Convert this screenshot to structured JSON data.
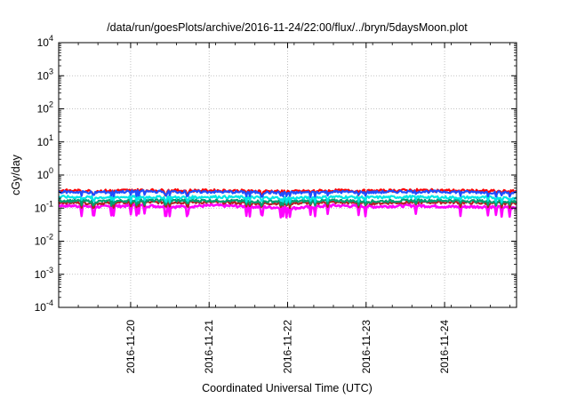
{
  "chart_data": {
    "type": "line",
    "title": "/data/run/goesPlots/archive/2016-11-24/22:00/flux/../bryn/5daysMoon.plot",
    "xlabel": "Coordinated Universal Time (UTC)",
    "ylabel": "cGy/day",
    "y_scale": "log",
    "ylim": [
      0.0001,
      10000
    ],
    "y_ticks": [
      {
        "value": 0.0001,
        "base": "10",
        "exp": "-4"
      },
      {
        "value": 0.001,
        "base": "10",
        "exp": "-3"
      },
      {
        "value": 0.01,
        "base": "10",
        "exp": "-2"
      },
      {
        "value": 0.1,
        "base": "10",
        "exp": "-1"
      },
      {
        "value": 1,
        "base": "10",
        "exp": "0"
      },
      {
        "value": 10,
        "base": "10",
        "exp": "1"
      },
      {
        "value": 100,
        "base": "10",
        "exp": "2"
      },
      {
        "value": 1000,
        "base": "10",
        "exp": "3"
      },
      {
        "value": 10000,
        "base": "10",
        "exp": "4"
      }
    ],
    "x_range": [
      "2016-11-19T02:00",
      "2016-11-24T22:00"
    ],
    "x_ticks": [
      "2016-11-20",
      "2016-11-21",
      "2016-11-22",
      "2016-11-23",
      "2016-11-24"
    ],
    "grid": true,
    "series": [
      {
        "color": "#ff00ff",
        "x": [
          "2016-11-19T02:00",
          "2016-11-19T14:00",
          "2016-11-20T02:00",
          "2016-11-20T14:00",
          "2016-11-21T02:00",
          "2016-11-21T14:00",
          "2016-11-22T02:00",
          "2016-11-22T14:00",
          "2016-11-23T02:00",
          "2016-11-23T14:00",
          "2016-11-24T02:00",
          "2016-11-24T14:00",
          "2016-11-24T22:00"
        ],
        "values": [
          0.12,
          0.11,
          0.12,
          0.11,
          0.12,
          0.11,
          0.1,
          0.12,
          0.11,
          0.12,
          0.11,
          0.11,
          0.1
        ]
      },
      {
        "color": "#b22222",
        "x": [
          "2016-11-19T02:00",
          "2016-11-19T14:00",
          "2016-11-20T02:00",
          "2016-11-20T14:00",
          "2016-11-21T02:00",
          "2016-11-21T14:00",
          "2016-11-22T02:00",
          "2016-11-22T14:00",
          "2016-11-23T02:00",
          "2016-11-23T14:00",
          "2016-11-24T02:00",
          "2016-11-24T14:00",
          "2016-11-24T22:00"
        ],
        "values": [
          0.15,
          0.14,
          0.15,
          0.15,
          0.15,
          0.14,
          0.14,
          0.15,
          0.14,
          0.15,
          0.15,
          0.14,
          0.14
        ]
      },
      {
        "color": "#009e73",
        "x": [
          "2016-11-19T02:00",
          "2016-11-19T14:00",
          "2016-11-20T02:00",
          "2016-11-20T14:00",
          "2016-11-21T02:00",
          "2016-11-21T14:00",
          "2016-11-22T02:00",
          "2016-11-22T14:00",
          "2016-11-23T02:00",
          "2016-11-23T14:00",
          "2016-11-24T02:00",
          "2016-11-24T14:00",
          "2016-11-24T22:00"
        ],
        "values": [
          0.17,
          0.16,
          0.17,
          0.17,
          0.17,
          0.16,
          0.16,
          0.17,
          0.16,
          0.17,
          0.17,
          0.16,
          0.16
        ]
      },
      {
        "color": "#00e5e5",
        "x": [
          "2016-11-19T02:00",
          "2016-11-19T14:00",
          "2016-11-20T02:00",
          "2016-11-20T14:00",
          "2016-11-21T02:00",
          "2016-11-21T14:00",
          "2016-11-22T02:00",
          "2016-11-22T14:00",
          "2016-11-23T02:00",
          "2016-11-23T14:00",
          "2016-11-24T02:00",
          "2016-11-24T14:00",
          "2016-11-24T22:00"
        ],
        "values": [
          0.22,
          0.21,
          0.22,
          0.21,
          0.22,
          0.21,
          0.2,
          0.22,
          0.21,
          0.22,
          0.21,
          0.21,
          0.2
        ]
      },
      {
        "color": "#ff0000",
        "x": [
          "2016-11-19T02:00",
          "2016-11-19T14:00",
          "2016-11-20T02:00",
          "2016-11-20T14:00",
          "2016-11-21T02:00",
          "2016-11-21T14:00",
          "2016-11-22T02:00",
          "2016-11-22T14:00",
          "2016-11-23T02:00",
          "2016-11-23T14:00",
          "2016-11-24T02:00",
          "2016-11-24T14:00",
          "2016-11-24T22:00"
        ],
        "values": [
          0.34,
          0.33,
          0.35,
          0.34,
          0.34,
          0.33,
          0.32,
          0.34,
          0.33,
          0.35,
          0.34,
          0.33,
          0.32
        ]
      },
      {
        "color": "#1f4fff",
        "x": [
          "2016-11-19T02:00",
          "2016-11-19T14:00",
          "2016-11-20T02:00",
          "2016-11-20T14:00",
          "2016-11-21T02:00",
          "2016-11-21T14:00",
          "2016-11-22T02:00",
          "2016-11-22T14:00",
          "2016-11-23T02:00",
          "2016-11-23T14:00",
          "2016-11-24T02:00",
          "2016-11-24T14:00",
          "2016-11-24T22:00"
        ],
        "values": [
          0.31,
          0.3,
          0.32,
          0.31,
          0.31,
          0.3,
          0.29,
          0.31,
          0.3,
          0.32,
          0.31,
          0.3,
          0.29
        ]
      }
    ]
  }
}
